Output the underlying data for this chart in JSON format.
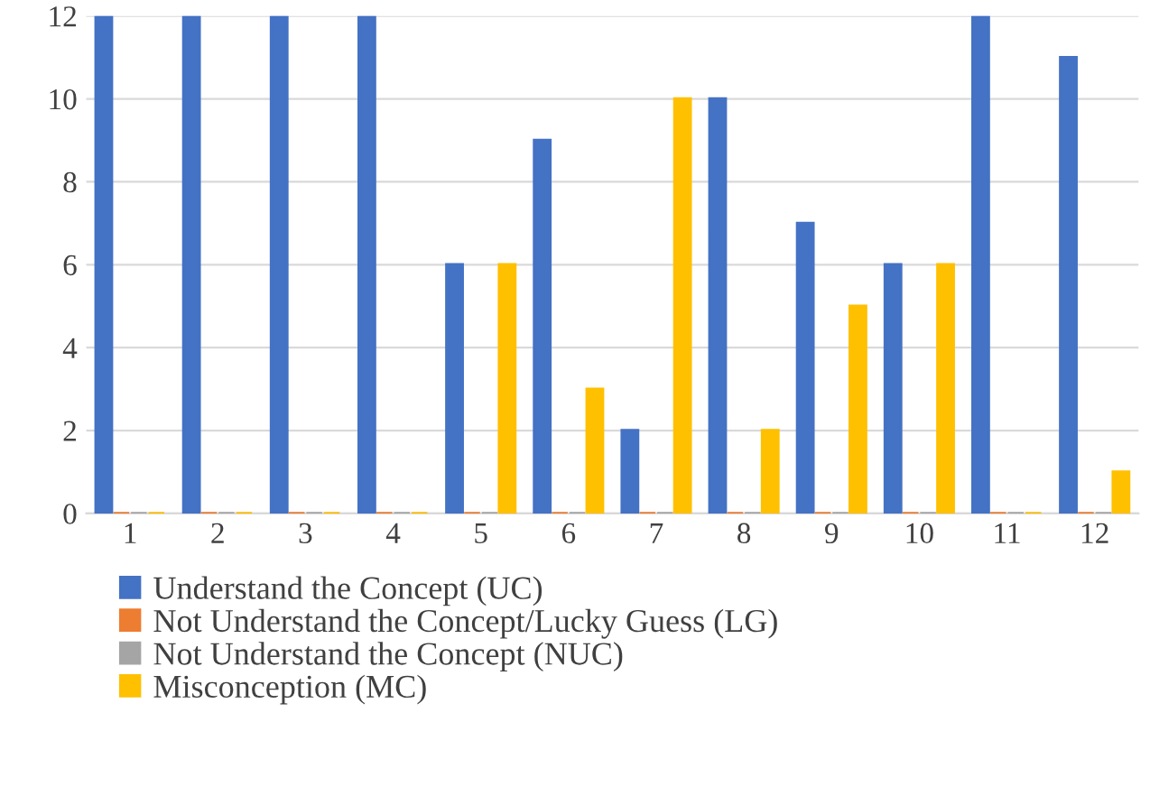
{
  "chart_data": {
    "type": "bar",
    "categories": [
      "1",
      "2",
      "3",
      "4",
      "5",
      "6",
      "7",
      "8",
      "9",
      "10",
      "11",
      "12"
    ],
    "series": [
      {
        "name": "Understand the Concept (UC)",
        "color": "#4472c4",
        "values": [
          12,
          12,
          12,
          12,
          6,
          9,
          2,
          10,
          7,
          6,
          12,
          11
        ]
      },
      {
        "name": "Not Understand the Concept/Lucky Guess (LG)",
        "color": "#ed7d31",
        "values": [
          0,
          0,
          0,
          0,
          0,
          0,
          0,
          0,
          0,
          0,
          0,
          0
        ]
      },
      {
        "name": "Not Understand the Concept (NUC)",
        "color": "#a5a5a5",
        "values": [
          0,
          0,
          0,
          0,
          0,
          0,
          0,
          0,
          0,
          0,
          0,
          0
        ]
      },
      {
        "name": "Misconception (MC)",
        "color": "#ffc000",
        "values": [
          0,
          0,
          0,
          0,
          6,
          3,
          10,
          2,
          5,
          6,
          0,
          1
        ]
      }
    ],
    "ylim": [
      0,
      12
    ],
    "yticks": [
      0,
      2,
      4,
      6,
      8,
      10,
      12
    ],
    "grid": "y",
    "legend": "bottom"
  }
}
